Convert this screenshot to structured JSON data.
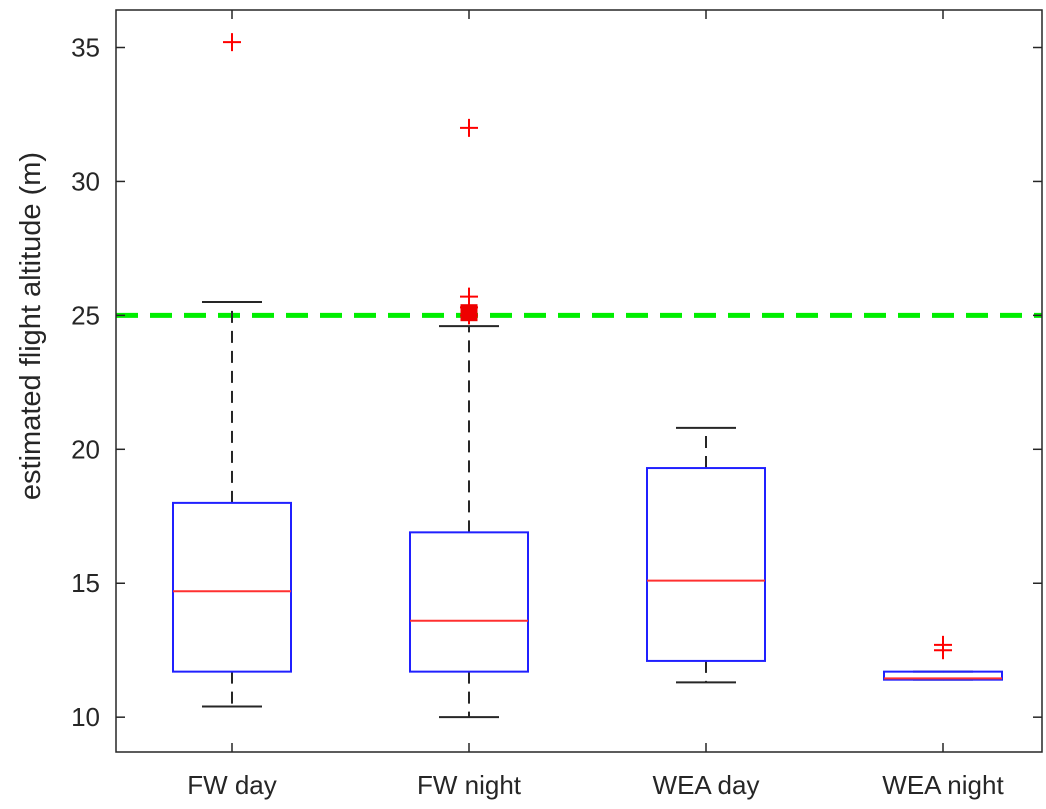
{
  "chart_data": {
    "type": "box",
    "title": "",
    "xlabel": "",
    "ylabel": "estimated flight altitude (m)",
    "ylim": [
      8.7,
      36.4
    ],
    "yticks": [
      10,
      15,
      20,
      25,
      30,
      35
    ],
    "grid": false,
    "categories": [
      "FW day",
      "FW night",
      "WEA day",
      "WEA night"
    ],
    "boxes": [
      {
        "category": "FW day",
        "whisker_low": 10.4,
        "q1": 11.7,
        "median": 14.7,
        "q3": 18.0,
        "whisker_high": 25.5,
        "outliers": [
          35.2
        ]
      },
      {
        "category": "FW night",
        "whisker_low": 10.0,
        "q1": 11.7,
        "median": 13.6,
        "q3": 16.9,
        "whisker_high": 24.6,
        "outliers": [
          32.0,
          25.7,
          25.3,
          25.0
        ]
      },
      {
        "category": "WEA day",
        "whisker_low": 11.3,
        "q1": 12.1,
        "median": 15.1,
        "q3": 19.3,
        "whisker_high": 20.8,
        "outliers": []
      },
      {
        "category": "WEA night",
        "whisker_low": 11.4,
        "q1": 11.4,
        "median": 11.45,
        "q3": 11.7,
        "whisker_high": 11.7,
        "outliers": [
          12.7,
          12.5
        ]
      }
    ],
    "reference_line": {
      "y": 25,
      "style": "dashed",
      "color": "#00ee00"
    },
    "marker": {
      "category": "FW night",
      "y": 25.1,
      "shape": "square",
      "color": "#ee0000"
    },
    "colors": {
      "box": "#2020ff",
      "median": "#ff3030",
      "whisker": "#262626",
      "outlier": "#ff0000",
      "axis": "#262626"
    }
  }
}
